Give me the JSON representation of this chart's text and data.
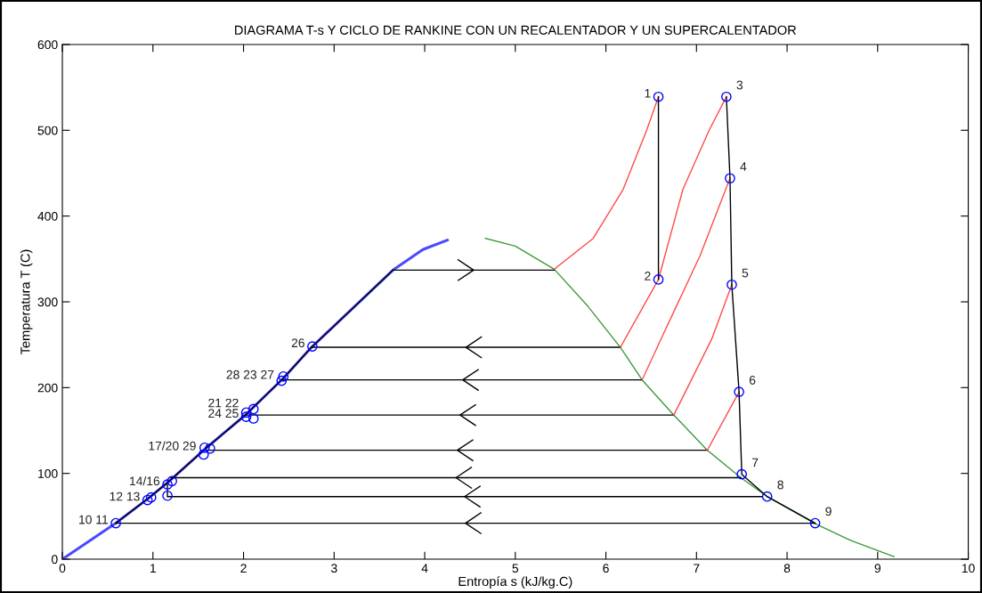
{
  "chart_data": {
    "type": "line",
    "title": "DIAGRAMA T-s Y CICLO DE RANKINE CON UN RECALENTADOR Y UN SUPERCALENTADOR",
    "xlabel": "Entropía s (kJ/kg.C)",
    "ylabel": "Temperatura T (C)",
    "xlim": [
      0,
      10
    ],
    "ylim": [
      0,
      600
    ],
    "xticks": [
      0,
      1,
      2,
      3,
      4,
      5,
      6,
      7,
      8,
      9,
      10
    ],
    "yticks": [
      0,
      100,
      200,
      300,
      400,
      500,
      600
    ],
    "grid": false,
    "legend": false,
    "marker": "none",
    "line_style": "solid",
    "series": [
      {
        "color": "#4a4aff",
        "x": [
          0,
          0.59,
          0.95,
          1.18,
          1.57,
          2.03,
          2.44,
          2.75,
          3.25,
          3.65,
          3.98,
          4.25
        ],
        "values": [
          0,
          42,
          71,
          91,
          128,
          169,
          211,
          247,
          297,
          337,
          361,
          372
        ]
      },
      {
        "color": "#3c9a3c",
        "x": [
          4.67,
          5.0,
          5.43,
          5.8,
          6.16,
          6.4,
          6.75,
          7.12,
          7.49,
          7.78,
          8.3,
          8.7,
          9.18
        ],
        "values": [
          374,
          365,
          338,
          295,
          247,
          209,
          168,
          127,
          95,
          73,
          42,
          22,
          3
        ]
      },
      {
        "type": "line",
        "color": "#000000",
        "x": [
          0.59,
          0.95,
          1.18,
          1.57,
          2.03,
          2.44,
          2.75,
          3.25,
          3.65
        ],
        "values": [
          42,
          71,
          91,
          128,
          169,
          211,
          247,
          297,
          337
        ]
      },
      {
        "type": "line",
        "color": "#000000",
        "x": [
          3.65,
          5.43
        ],
        "values": [
          337,
          337
        ]
      },
      {
        "type": "line",
        "color": "#000000",
        "x": [
          6.16,
          2.75
        ],
        "values": [
          247,
          247
        ]
      },
      {
        "type": "line",
        "color": "#000000",
        "x": [
          6.4,
          2.44
        ],
        "values": [
          209,
          209
        ]
      },
      {
        "type": "line",
        "color": "#000000",
        "x": [
          6.75,
          2.03
        ],
        "values": [
          168,
          168
        ]
      },
      {
        "type": "line",
        "color": "#000000",
        "x": [
          7.12,
          1.6
        ],
        "values": [
          127,
          127
        ]
      },
      {
        "type": "line",
        "color": "#000000",
        "x": [
          7.49,
          1.2
        ],
        "values": [
          95,
          95
        ]
      },
      {
        "type": "line",
        "color": "#000000",
        "x": [
          7.72,
          1.16
        ],
        "values": [
          73,
          73
        ]
      },
      {
        "type": "line",
        "color": "#000000",
        "x": [
          8.31,
          0.59
        ],
        "values": [
          42,
          42
        ]
      },
      {
        "type": "line",
        "color": "#ff4a4a",
        "x": [
          5.43,
          5.86,
          6.19,
          6.45,
          6.58
        ],
        "values": [
          338,
          374,
          431,
          500,
          539
        ]
      },
      {
        "type": "line",
        "color": "#ff4a4a",
        "x": [
          6.16,
          6.58,
          6.85,
          7.14,
          7.33
        ],
        "values": [
          247,
          326,
          431,
          500,
          539
        ]
      },
      {
        "type": "line",
        "color": "#ff4a4a",
        "x": [
          6.4,
          6.61,
          7.04,
          7.37
        ],
        "values": [
          209,
          257,
          354,
          444
        ]
      },
      {
        "type": "line",
        "color": "#ff4a4a",
        "x": [
          6.75,
          7.17,
          7.39
        ],
        "values": [
          168,
          257,
          320
        ]
      },
      {
        "type": "line",
        "color": "#ff4a4a",
        "x": [
          7.12,
          7.47
        ],
        "values": [
          127,
          195
        ]
      },
      {
        "type": "line",
        "color": "#000000",
        "x": [
          6.58,
          6.58
        ],
        "values": [
          539,
          326
        ]
      },
      {
        "type": "line",
        "color": "#000000",
        "x": [
          7.33,
          7.37,
          7.39,
          7.47,
          7.5,
          7.78,
          8.31
        ],
        "values": [
          539,
          444,
          320,
          195,
          99,
          73,
          42
        ]
      },
      {
        "type": "line",
        "color": "#000000",
        "x": [
          1.16,
          1.16
        ],
        "values": [
          74,
          87
        ]
      },
      {
        "type": "scatter",
        "color": "#0000ff",
        "marker": "circle",
        "x": [
          6.58,
          6.58,
          7.33,
          7.37,
          7.39,
          7.47,
          7.5,
          7.78,
          8.31,
          0.59,
          0.94,
          0.98,
          1.16,
          1.21,
          1.16,
          1.57,
          1.56,
          1.63,
          2.03,
          2.03,
          2.11,
          2.11,
          2.44,
          2.42,
          2.76
        ],
        "values": [
          539,
          326,
          539,
          444,
          320,
          195,
          99,
          73,
          42,
          42,
          69,
          72,
          87,
          91,
          74,
          130,
          122,
          129,
          171,
          166,
          175,
          164,
          213,
          208,
          248
        ]
      }
    ],
    "annotations": [
      {
        "text": "1",
        "x": 6.58,
        "y": 539
      },
      {
        "text": "2",
        "x": 6.58,
        "y": 326
      },
      {
        "text": "3",
        "x": 7.33,
        "y": 539
      },
      {
        "text": "4",
        "x": 7.37,
        "y": 444
      },
      {
        "text": "5",
        "x": 7.39,
        "y": 320
      },
      {
        "text": "6",
        "x": 7.47,
        "y": 195
      },
      {
        "text": "7",
        "x": 7.5,
        "y": 99
      },
      {
        "text": "8",
        "x": 7.78,
        "y": 73
      },
      {
        "text": "9",
        "x": 8.31,
        "y": 42
      },
      {
        "text": "10 11",
        "x": 0.59,
        "y": 42
      },
      {
        "text": "12 13",
        "x": 0.94,
        "y": 69
      },
      {
        "text": "14/16",
        "x": 1.16,
        "y": 87
      },
      {
        "text": "17/20 29",
        "x": 1.56,
        "y": 128
      },
      {
        "text": "21 22",
        "x": 2.03,
        "y": 178
      },
      {
        "text": "24 25",
        "x": 2.03,
        "y": 166
      },
      {
        "text": "28 23 27",
        "x": 2.42,
        "y": 211
      },
      {
        "text": "26",
        "x": 2.76,
        "y": 248
      }
    ]
  }
}
